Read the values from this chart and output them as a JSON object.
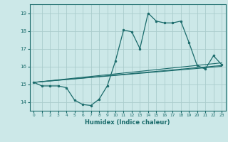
{
  "xlabel": "Humidex (Indice chaleur)",
  "ylabel": "",
  "bg_color": "#cce8e8",
  "grid_color": "#aacccc",
  "line_color": "#1a6b6b",
  "xlim": [
    -0.5,
    23.5
  ],
  "ylim": [
    13.5,
    19.5
  ],
  "yticks": [
    14,
    15,
    16,
    17,
    18,
    19
  ],
  "xticks": [
    0,
    1,
    2,
    3,
    4,
    5,
    6,
    7,
    8,
    9,
    10,
    11,
    12,
    13,
    14,
    15,
    16,
    17,
    18,
    19,
    20,
    21,
    22,
    23
  ],
  "main_x": [
    0,
    1,
    2,
    3,
    4,
    5,
    6,
    7,
    8,
    9,
    10,
    11,
    12,
    13,
    14,
    15,
    16,
    17,
    18,
    19,
    20,
    21,
    22,
    23
  ],
  "main_y": [
    15.1,
    14.9,
    14.9,
    14.9,
    14.8,
    14.1,
    13.85,
    13.8,
    14.15,
    14.9,
    16.3,
    18.05,
    17.95,
    17.0,
    19.0,
    18.55,
    18.45,
    18.45,
    18.55,
    17.35,
    16.05,
    15.85,
    16.6,
    16.1
  ],
  "trend1_x": [
    0,
    23
  ],
  "trend1_y": [
    15.1,
    16.05
  ],
  "trend2_x": [
    0,
    23
  ],
  "trend2_y": [
    15.1,
    16.2
  ],
  "trend3_x": [
    0,
    23
  ],
  "trend3_y": [
    15.1,
    16.0
  ]
}
